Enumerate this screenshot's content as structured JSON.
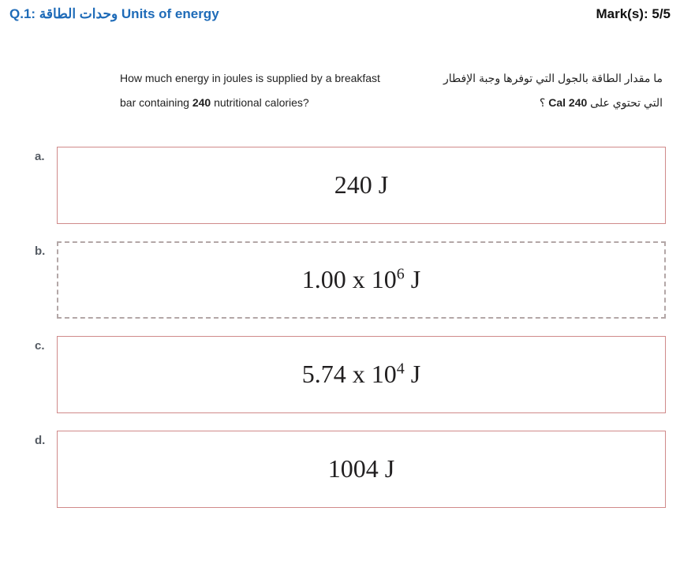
{
  "header": {
    "q_number": "Q.1:",
    "title_ar": "وحدات الطاقة",
    "title_en": "Units of energy",
    "marks_label": "Mark(s):",
    "marks_value": "5/5"
  },
  "question": {
    "en_line1": "How much energy in joules is supplied by a breakfast",
    "en_line2_before": "bar containing ",
    "en_bold": "240",
    "en_line2_after": " nutritional calories?",
    "ar_line1": "ما مقدار الطاقة بالجول التي توفرها وجبة الإفطار",
    "ar_line2_before": "التي تحتوي على ",
    "ar_bold": "240 Cal",
    "ar_line2_after": " ؟"
  },
  "options": [
    {
      "label": "a.",
      "text_plain": "240 J",
      "has_sup": false,
      "border_style": "solid",
      "border_color": "#d08a8a"
    },
    {
      "label": "b.",
      "text_before": "1.00 x 10",
      "sup": "6",
      "text_after": " J",
      "has_sup": true,
      "border_style": "dashed",
      "border_color": "#b3a7a7"
    },
    {
      "label": "c.",
      "text_before": "5.74 x 10",
      "sup": "4",
      "text_after": " J",
      "has_sup": true,
      "border_style": "solid",
      "border_color": "#d08a8a"
    },
    {
      "label": "d.",
      "text_plain": "1004 J",
      "has_sup": false,
      "border_style": "solid",
      "border_color": "#d08a8a"
    }
  ],
  "colors": {
    "title": "#1e6bb8",
    "text": "#222222",
    "option_label": "#555b63",
    "answer_text": "#211f20",
    "bg": "#ffffff"
  }
}
